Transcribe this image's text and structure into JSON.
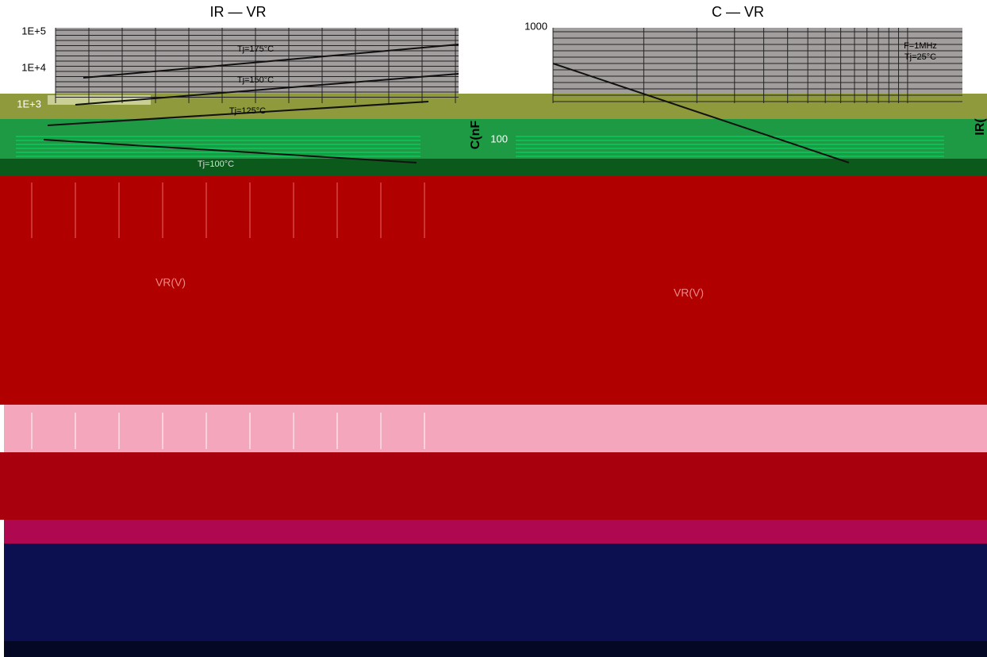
{
  "panels": [
    {
      "title": "IR — VR",
      "yticks": [
        "1E+5",
        "1E+4",
        "1E+3"
      ],
      "curve_labels": [
        "Tj=175°C",
        "Tj=150°C",
        "Tj=125°C",
        "Tj=100°C"
      ],
      "x_label": "VR(V)"
    },
    {
      "title": "C — VR",
      "yticks": [
        "1000",
        "100"
      ],
      "y_label": "C(nF",
      "notes": [
        "F=1MHz",
        "Tj=25°C"
      ],
      "x_label": "VR(V)",
      "side_label": "IR("
    }
  ]
}
